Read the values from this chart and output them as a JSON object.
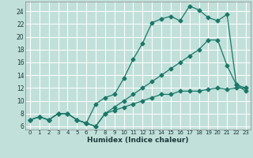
{
  "xlabel": "Humidex (Indice chaleur)",
  "background_color": "#c2e0da",
  "grid_color": "#ffffff",
  "line_color": "#1a7868",
  "xlim": [
    -0.5,
    23.5
  ],
  "ylim": [
    5.5,
    25.5
  ],
  "xticks": [
    0,
    1,
    2,
    3,
    4,
    5,
    6,
    7,
    8,
    9,
    10,
    11,
    12,
    13,
    14,
    15,
    16,
    17,
    18,
    19,
    20,
    21,
    22,
    23
  ],
  "yticks": [
    6,
    8,
    10,
    12,
    14,
    16,
    18,
    20,
    22,
    24
  ],
  "line1_x": [
    0,
    1,
    2,
    3,
    4,
    5,
    6,
    7,
    8,
    9,
    10,
    11,
    12,
    13,
    14,
    15,
    16,
    17,
    18,
    19,
    20,
    21,
    22,
    23
  ],
  "line1_y": [
    7,
    7.5,
    7,
    8,
    8,
    7,
    6.5,
    9.5,
    10.5,
    11,
    13.5,
    16.5,
    19,
    22.2,
    22.8,
    23.2,
    22.5,
    24.8,
    24.2,
    23,
    22.5,
    23.5,
    12.5,
    11.5
  ],
  "line2_x": [
    0,
    1,
    2,
    3,
    4,
    5,
    6,
    7,
    8,
    9,
    10,
    11,
    12,
    13,
    14,
    15,
    16,
    17,
    18,
    19,
    20,
    21,
    22,
    23
  ],
  "line2_y": [
    7,
    7.5,
    7,
    8,
    8,
    7,
    6.5,
    6,
    8,
    9,
    10,
    11,
    12,
    13,
    14,
    15,
    16,
    17,
    18,
    19.5,
    19.5,
    15.5,
    12.5,
    12
  ],
  "line3_x": [
    0,
    1,
    2,
    3,
    4,
    5,
    6,
    7,
    8,
    9,
    10,
    11,
    12,
    13,
    14,
    15,
    16,
    17,
    18,
    19,
    20,
    21,
    22,
    23
  ],
  "line3_y": [
    7,
    7.5,
    7,
    8,
    8,
    7,
    6.5,
    6,
    8,
    8.5,
    9,
    9.5,
    10,
    10.5,
    11,
    11,
    11.5,
    11.5,
    11.5,
    11.8,
    12,
    11.8,
    12,
    12
  ]
}
